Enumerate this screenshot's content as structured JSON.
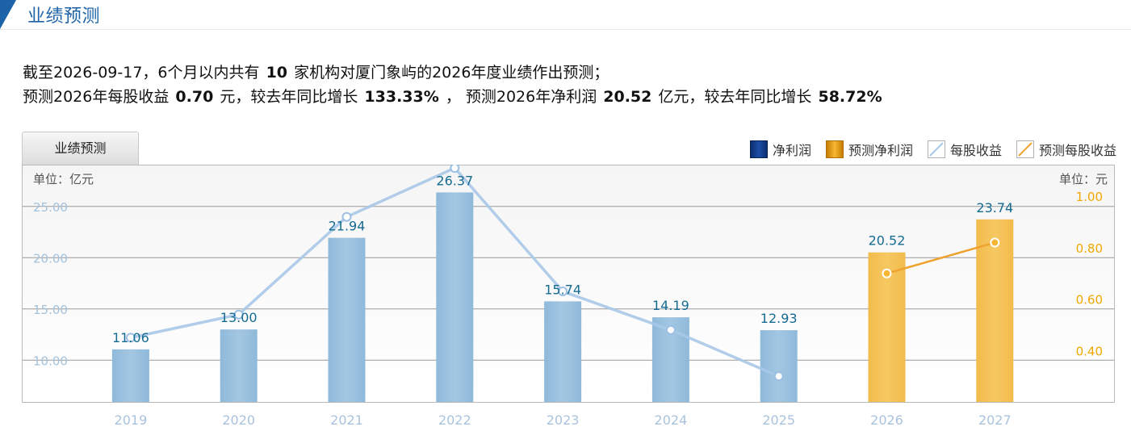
{
  "header": {
    "title": "业绩预测"
  },
  "summary": {
    "line1_prefix": "截至2026-09-17，6个月以内共有",
    "org_count": "10",
    "line1_suffix": "家机构对厦门象屿的2026年度业绩作出预测；",
    "eps_prefix": "预测2026年每股收益",
    "eps_value": "0.70",
    "eps_unit": "元，较去年同比增长",
    "eps_growth": "133.33%",
    "profit_prefix": "， 预测2026年净利润",
    "profit_value": "20.52",
    "profit_unit": "亿元，较去年同比增长",
    "profit_growth": "58.72%"
  },
  "tabs": [
    {
      "label": "业绩预测"
    }
  ],
  "legend": [
    {
      "label": "净利润",
      "icon": "blue-bar-swatch"
    },
    {
      "label": "预测净利润",
      "icon": "orange-bar-swatch"
    },
    {
      "label": "每股收益",
      "icon": "blue-line-swatch"
    },
    {
      "label": "预测每股收益",
      "icon": "orange-line-swatch"
    }
  ],
  "colors": {
    "bar_actual": "#97bfdd",
    "bar_forecast": "#f4c155",
    "line_actual": "#a9c8e8",
    "line_forecast": "#f0a22e",
    "left_axis_text": "#a4c2dc",
    "right_axis_text": "#f0a800",
    "label_text": "#156b92"
  },
  "chart_data": {
    "type": "bar",
    "categories": [
      "2019",
      "2020",
      "2021",
      "2022",
      "2023",
      "2024",
      "2025",
      "2026",
      "2027"
    ],
    "series": [
      {
        "name": "净利润",
        "kind": "bar",
        "axis": "left",
        "values": [
          11.06,
          13.0,
          21.94,
          26.37,
          15.74,
          14.19,
          12.93,
          null,
          null
        ]
      },
      {
        "name": "预测净利润",
        "kind": "bar",
        "axis": "left",
        "values": [
          null,
          null,
          null,
          null,
          null,
          null,
          null,
          20.52,
          23.74
        ]
      },
      {
        "name": "每股收益",
        "kind": "line",
        "axis": "right",
        "values": [
          0.45,
          0.54,
          0.92,
          1.11,
          0.63,
          0.48,
          0.3,
          null,
          null
        ]
      },
      {
        "name": "预测每股收益",
        "kind": "line",
        "axis": "right",
        "values": [
          null,
          null,
          null,
          null,
          null,
          null,
          null,
          0.7,
          0.82
        ]
      }
    ],
    "bar_labels": [
      "11.06",
      "13.00",
      "21.94",
      "26.37",
      "15.74",
      "14.19",
      "12.93",
      "20.52",
      "23.74"
    ],
    "left_axis": {
      "unit_label": "单位：亿元",
      "ticks": [
        "10.00",
        "15.00",
        "20.00",
        "25.00"
      ],
      "range": [
        5.93,
        29.0
      ]
    },
    "right_axis": {
      "unit_label": "单位：元",
      "ticks": [
        "0.40",
        "0.60",
        "0.80",
        "1.00"
      ],
      "range": [
        0.2,
        1.12
      ]
    },
    "grid": true
  }
}
